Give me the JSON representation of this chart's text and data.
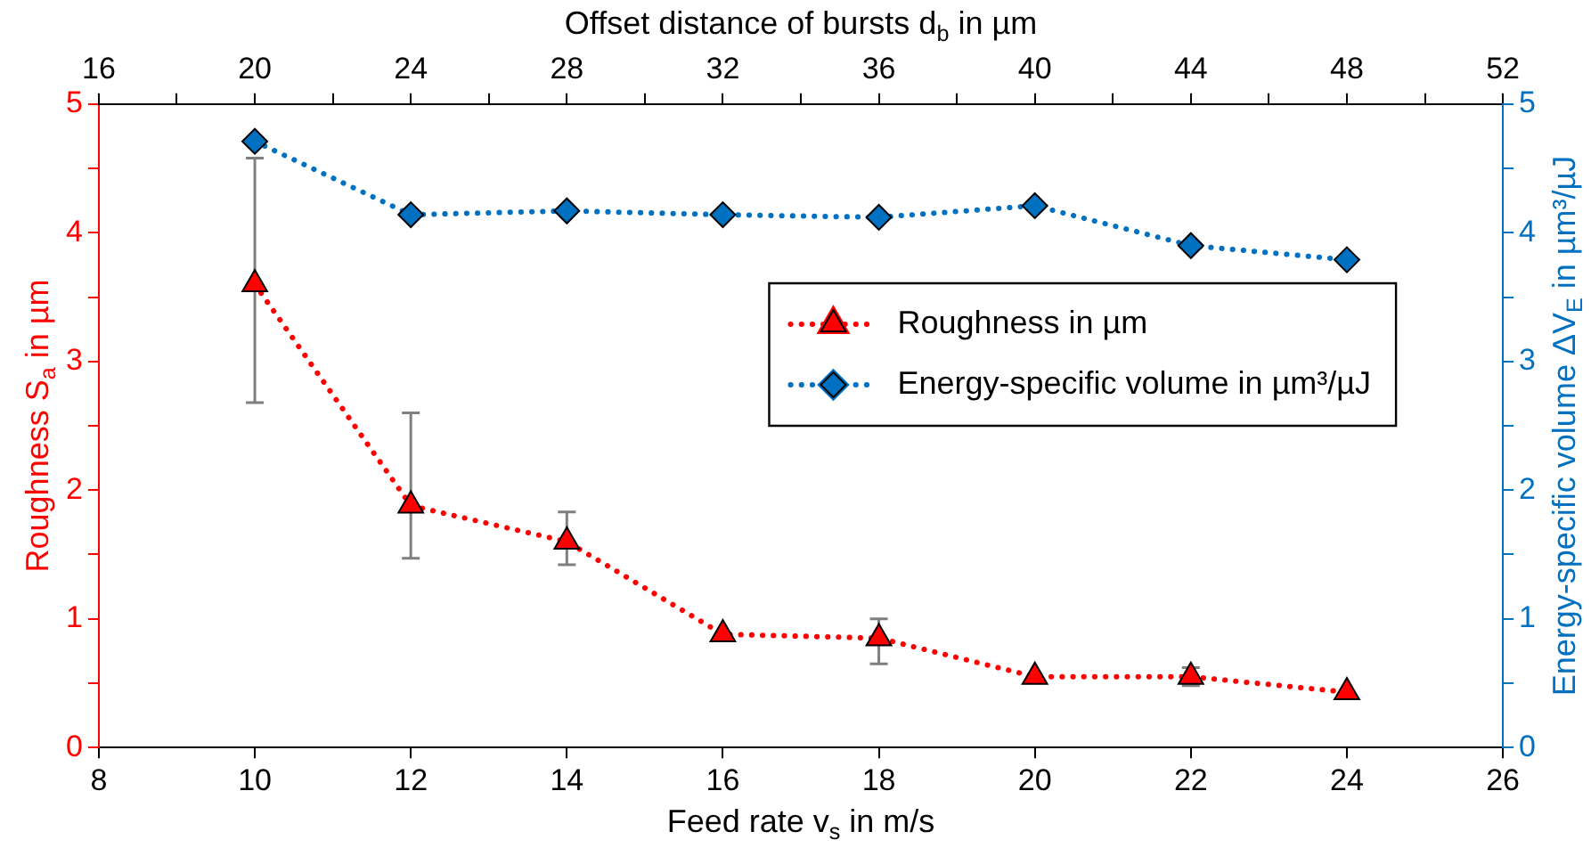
{
  "chart_data": {
    "type": "line",
    "xlabel": "Feed rate v$_{s}$ in m/s",
    "x2label": "Offset distance of bursts d$_{b}$ in µm",
    "ylabel": "Roughness S$_{a}$ in µm",
    "y2label": "Energy-specific volume ΔV$_{E}$ in µm³/µJ",
    "x": [
      10,
      12,
      14,
      16,
      18,
      20,
      22,
      24
    ],
    "xlim": [
      8,
      26
    ],
    "xticks": [
      8,
      10,
      12,
      14,
      16,
      18,
      20,
      22,
      24,
      26
    ],
    "x2lim": [
      16,
      52
    ],
    "x2ticks": [
      16,
      {
        "value": 18,
        "label": null
      },
      20,
      {
        "value": 22,
        "label": null
      },
      24,
      {
        "value": 26,
        "label": null
      },
      28,
      {
        "value": 30,
        "label": null
      },
      32,
      {
        "value": 34,
        "label": null
      },
      36,
      {
        "value": 38,
        "label": null
      },
      40,
      {
        "value": 42,
        "label": null
      },
      44,
      {
        "value": 46,
        "label": null
      },
      48,
      {
        "value": 50,
        "label": null
      },
      52
    ],
    "ylim": [
      0,
      5
    ],
    "yticks": [
      0,
      {
        "value": 0.5,
        "label": null
      },
      1,
      {
        "value": 1.5,
        "label": null
      },
      2,
      {
        "value": 2.5,
        "label": null
      },
      3,
      {
        "value": 3.5,
        "label": null
      },
      4,
      {
        "value": 4.5,
        "label": null
      },
      5
    ],
    "y2lim": [
      0,
      5
    ],
    "y2ticks": [
      0,
      {
        "value": 0.5,
        "label": null
      },
      1,
      {
        "value": 1.5,
        "label": null
      },
      2,
      {
        "value": 2.5,
        "label": null
      },
      3,
      {
        "value": 3.5,
        "label": null
      },
      4,
      {
        "value": 4.5,
        "label": null
      },
      5
    ],
    "series": [
      {
        "name": "Roughness in µm",
        "color": "#ff0000",
        "marker": "triangle",
        "line_style": "dotted",
        "values": [
          3.6,
          1.88,
          1.6,
          0.88,
          0.85,
          0.55,
          0.55,
          0.43
        ],
        "errors": [
          [
            2.68,
            4.58
          ],
          [
            1.47,
            2.6
          ],
          [
            1.42,
            1.83
          ],
          null,
          [
            0.65,
            1.0
          ],
          null,
          [
            0.48,
            0.62
          ],
          null
        ]
      },
      {
        "name": "Energy-specific volume in µm³/µJ",
        "color": "#0070c0",
        "marker": "diamond",
        "line_style": "dotted",
        "axis": "y2",
        "values": [
          4.71,
          4.14,
          4.17,
          4.14,
          4.12,
          4.21,
          3.9,
          3.79
        ]
      }
    ],
    "grid": false,
    "legend": "right"
  }
}
